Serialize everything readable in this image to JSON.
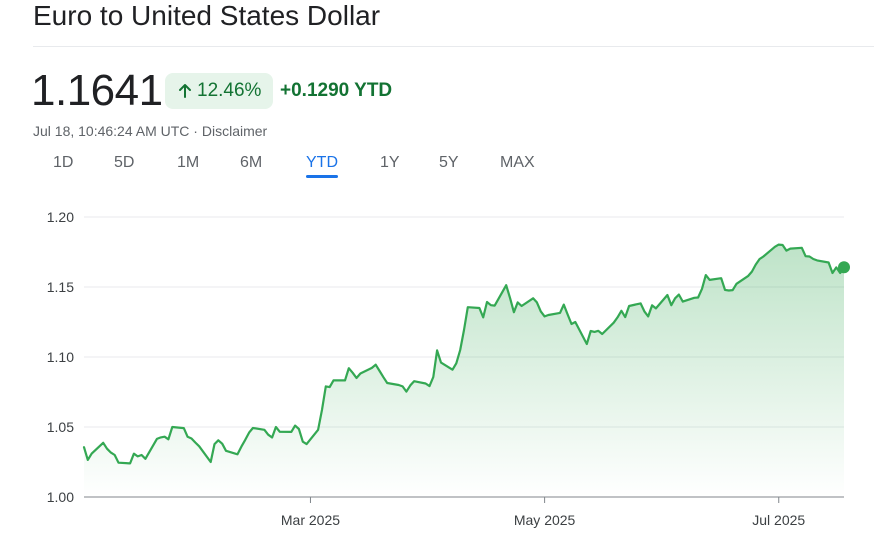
{
  "header": {
    "title": "Euro to United States Dollar",
    "price": "1.1641",
    "change_pct": "12.46%",
    "change_abs": "+0.1290 YTD",
    "timestamp": "Jul 18, 10:46:24 AM UTC · ",
    "disclaimer": "Disclaimer",
    "up_color": "#137333",
    "badge_bg": "#e6f4ea"
  },
  "tabs": [
    {
      "label": "1D",
      "active": false
    },
    {
      "label": "5D",
      "active": false
    },
    {
      "label": "1M",
      "active": false
    },
    {
      "label": "6M",
      "active": false
    },
    {
      "label": "YTD",
      "active": true
    },
    {
      "label": "1Y",
      "active": false
    },
    {
      "label": "5Y",
      "active": false
    },
    {
      "label": "MAX",
      "active": false
    }
  ],
  "chart_data": {
    "type": "area",
    "ylim": [
      1.0,
      1.2
    ],
    "yticks": [
      "1.00",
      "1.05",
      "1.10",
      "1.15",
      "1.20"
    ],
    "xticks": [
      {
        "label": "Mar 2025",
        "date": "2025-03-01"
      },
      {
        "label": "May 2025",
        "date": "2025-05-01"
      },
      {
        "label": "Jul 2025",
        "date": "2025-07-01"
      }
    ],
    "xrange": [
      "2025-01-01",
      "2025-07-18"
    ],
    "line_color": "#34a853",
    "grid": true,
    "series": [
      {
        "points": [
          [
            "2025-01-01",
            1.0356
          ],
          [
            "2025-01-02",
            1.0265
          ],
          [
            "2025-01-03",
            1.031
          ],
          [
            "2025-01-06",
            1.0387
          ],
          [
            "2025-01-07",
            1.0345
          ],
          [
            "2025-01-08",
            1.0317
          ],
          [
            "2025-01-09",
            1.03
          ],
          [
            "2025-01-10",
            1.0245
          ],
          [
            "2025-01-13",
            1.024
          ],
          [
            "2025-01-14",
            1.0309
          ],
          [
            "2025-01-15",
            1.029
          ],
          [
            "2025-01-16",
            1.03
          ],
          [
            "2025-01-17",
            1.0273
          ],
          [
            "2025-01-20",
            1.0415
          ],
          [
            "2025-01-21",
            1.0426
          ],
          [
            "2025-01-22",
            1.0431
          ],
          [
            "2025-01-23",
            1.0412
          ],
          [
            "2025-01-24",
            1.05
          ],
          [
            "2025-01-27",
            1.0492
          ],
          [
            "2025-01-28",
            1.043
          ],
          [
            "2025-01-29",
            1.0418
          ],
          [
            "2025-01-30",
            1.0389
          ],
          [
            "2025-01-31",
            1.0362
          ],
          [
            "2025-02-03",
            1.025
          ],
          [
            "2025-02-04",
            1.0378
          ],
          [
            "2025-02-05",
            1.0405
          ],
          [
            "2025-02-06",
            1.0381
          ],
          [
            "2025-02-07",
            1.033
          ],
          [
            "2025-02-10",
            1.0305
          ],
          [
            "2025-02-11",
            1.036
          ],
          [
            "2025-02-12",
            1.0408
          ],
          [
            "2025-02-13",
            1.046
          ],
          [
            "2025-02-14",
            1.0493
          ],
          [
            "2025-02-17",
            1.048
          ],
          [
            "2025-02-18",
            1.0445
          ],
          [
            "2025-02-19",
            1.0425
          ],
          [
            "2025-02-20",
            1.05
          ],
          [
            "2025-02-21",
            1.0466
          ],
          [
            "2025-02-24",
            1.0465
          ],
          [
            "2025-02-25",
            1.051
          ],
          [
            "2025-02-26",
            1.0486
          ],
          [
            "2025-02-27",
            1.0395
          ],
          [
            "2025-02-28",
            1.0378
          ],
          [
            "2025-03-03",
            1.048
          ],
          [
            "2025-03-04",
            1.0623
          ],
          [
            "2025-03-05",
            1.079
          ],
          [
            "2025-03-06",
            1.0785
          ],
          [
            "2025-03-07",
            1.0833
          ],
          [
            "2025-03-10",
            1.0833
          ],
          [
            "2025-03-11",
            1.092
          ],
          [
            "2025-03-12",
            1.0887
          ],
          [
            "2025-03-13",
            1.085
          ],
          [
            "2025-03-14",
            1.0882
          ],
          [
            "2025-03-17",
            1.0922
          ],
          [
            "2025-03-18",
            1.0945
          ],
          [
            "2025-03-19",
            1.09
          ],
          [
            "2025-03-20",
            1.0856
          ],
          [
            "2025-03-21",
            1.0814
          ],
          [
            "2025-03-24",
            1.08
          ],
          [
            "2025-03-25",
            1.079
          ],
          [
            "2025-03-26",
            1.0753
          ],
          [
            "2025-03-27",
            1.0797
          ],
          [
            "2025-03-28",
            1.0827
          ],
          [
            "2025-03-31",
            1.0811
          ],
          [
            "2025-04-01",
            1.0792
          ],
          [
            "2025-04-02",
            1.0857
          ],
          [
            "2025-04-03",
            1.1047
          ],
          [
            "2025-04-04",
            1.096
          ],
          [
            "2025-04-07",
            1.0909
          ],
          [
            "2025-04-08",
            1.0955
          ],
          [
            "2025-04-09",
            1.105
          ],
          [
            "2025-04-10",
            1.1193
          ],
          [
            "2025-04-11",
            1.1356
          ],
          [
            "2025-04-14",
            1.135
          ],
          [
            "2025-04-15",
            1.1283
          ],
          [
            "2025-04-16",
            1.1393
          ],
          [
            "2025-04-17",
            1.137
          ],
          [
            "2025-04-18",
            1.1367
          ],
          [
            "2025-04-21",
            1.1513
          ],
          [
            "2025-04-22",
            1.142
          ],
          [
            "2025-04-23",
            1.132
          ],
          [
            "2025-04-24",
            1.139
          ],
          [
            "2025-04-25",
            1.1364
          ],
          [
            "2025-04-28",
            1.1419
          ],
          [
            "2025-04-29",
            1.139
          ],
          [
            "2025-04-30",
            1.1326
          ],
          [
            "2025-05-01",
            1.129
          ],
          [
            "2025-05-02",
            1.13
          ],
          [
            "2025-05-05",
            1.1315
          ],
          [
            "2025-05-06",
            1.1374
          ],
          [
            "2025-05-07",
            1.1304
          ],
          [
            "2025-05-08",
            1.1236
          ],
          [
            "2025-05-09",
            1.125
          ],
          [
            "2025-05-12",
            1.1093
          ],
          [
            "2025-05-13",
            1.1186
          ],
          [
            "2025-05-14",
            1.1179
          ],
          [
            "2025-05-15",
            1.1187
          ],
          [
            "2025-05-16",
            1.1164
          ],
          [
            "2025-05-19",
            1.1245
          ],
          [
            "2025-05-20",
            1.1283
          ],
          [
            "2025-05-21",
            1.133
          ],
          [
            "2025-05-22",
            1.1285
          ],
          [
            "2025-05-23",
            1.1364
          ],
          [
            "2025-05-26",
            1.1383
          ],
          [
            "2025-05-27",
            1.1326
          ],
          [
            "2025-05-28",
            1.129
          ],
          [
            "2025-05-29",
            1.1369
          ],
          [
            "2025-05-30",
            1.1347
          ],
          [
            "2025-06-02",
            1.1443
          ],
          [
            "2025-06-03",
            1.137
          ],
          [
            "2025-06-04",
            1.1419
          ],
          [
            "2025-06-05",
            1.1446
          ],
          [
            "2025-06-06",
            1.1396
          ],
          [
            "2025-06-09",
            1.1423
          ],
          [
            "2025-06-10",
            1.1425
          ],
          [
            "2025-06-11",
            1.1487
          ],
          [
            "2025-06-12",
            1.1585
          ],
          [
            "2025-06-13",
            1.1551
          ],
          [
            "2025-06-16",
            1.1563
          ],
          [
            "2025-06-17",
            1.1479
          ],
          [
            "2025-06-18",
            1.1475
          ],
          [
            "2025-06-19",
            1.1478
          ],
          [
            "2025-06-20",
            1.1523
          ],
          [
            "2025-06-23",
            1.1578
          ],
          [
            "2025-06-24",
            1.161
          ],
          [
            "2025-06-25",
            1.166
          ],
          [
            "2025-06-26",
            1.17
          ],
          [
            "2025-06-27",
            1.1718
          ],
          [
            "2025-06-30",
            1.1787
          ],
          [
            "2025-07-01",
            1.1803
          ],
          [
            "2025-07-02",
            1.18
          ],
          [
            "2025-07-03",
            1.176
          ],
          [
            "2025-07-04",
            1.1774
          ],
          [
            "2025-07-07",
            1.178
          ],
          [
            "2025-07-08",
            1.172
          ],
          [
            "2025-07-09",
            1.1718
          ],
          [
            "2025-07-10",
            1.17
          ],
          [
            "2025-07-11",
            1.169
          ],
          [
            "2025-07-14",
            1.1675
          ],
          [
            "2025-07-15",
            1.16
          ],
          [
            "2025-07-16",
            1.164
          ],
          [
            "2025-07-17",
            1.16
          ],
          [
            "2025-07-18",
            1.1641
          ]
        ]
      }
    ]
  }
}
